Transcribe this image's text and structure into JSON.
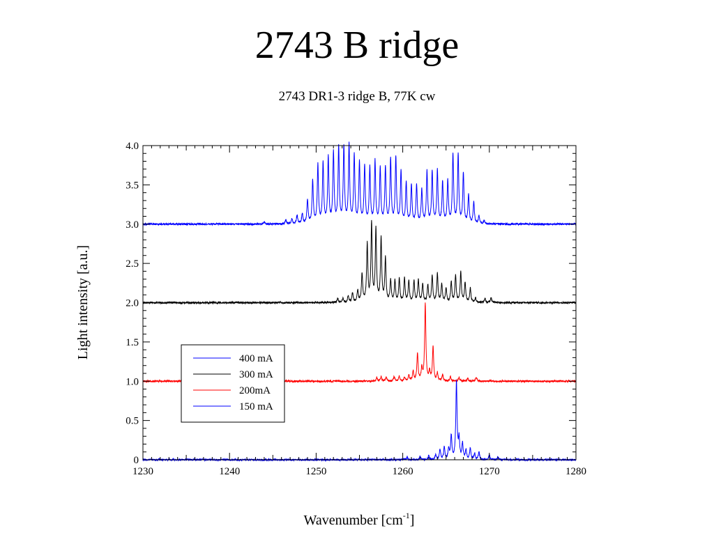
{
  "title": "2743 B ridge",
  "subtitle": "2743 DR1-3 ridge B, 77K cw",
  "chart_data": {
    "type": "line",
    "xlabel": "Wavenumber [cm",
    "xlabel_sup": "-1",
    "xlabel_tail": "]",
    "ylabel": "Light intensity [a.u.]",
    "xlim": [
      1230,
      1280
    ],
    "ylim": [
      0,
      4.0
    ],
    "xticks": [
      1230,
      1240,
      1250,
      1260,
      1270,
      1280
    ],
    "xtick_labels": [
      "1230",
      "1240",
      "1250",
      "1260",
      "1270",
      "1280"
    ],
    "yticks": [
      0,
      0.5,
      1.0,
      1.5,
      2.0,
      2.5,
      3.0,
      3.5,
      4.0
    ],
    "ytick_labels": [
      "0",
      "0.5",
      "1.0",
      "1.5",
      "2.0",
      "2.5",
      "3.0",
      "3.5",
      "4.0"
    ],
    "grid": false,
    "legend_position": "lower-left",
    "series": [
      {
        "name": "400 mA",
        "color": "#0000ff",
        "baseline": 3.0,
        "peaks": [
          [
            1244.0,
            0.03
          ],
          [
            1246.5,
            0.05
          ],
          [
            1247.2,
            0.07
          ],
          [
            1247.8,
            0.11
          ],
          [
            1248.4,
            0.13
          ],
          [
            1249.0,
            0.3
          ],
          [
            1249.6,
            0.55
          ],
          [
            1250.2,
            0.74
          ],
          [
            1250.8,
            0.77
          ],
          [
            1251.4,
            0.84
          ],
          [
            1252.0,
            0.9
          ],
          [
            1252.6,
            0.96
          ],
          [
            1253.2,
            0.97
          ],
          [
            1253.8,
            0.99
          ],
          [
            1254.4,
            0.86
          ],
          [
            1255.0,
            0.77
          ],
          [
            1255.6,
            0.73
          ],
          [
            1256.2,
            0.7
          ],
          [
            1256.8,
            0.79
          ],
          [
            1257.4,
            0.7
          ],
          [
            1258.0,
            0.71
          ],
          [
            1258.6,
            0.82
          ],
          [
            1259.2,
            0.84
          ],
          [
            1259.8,
            0.66
          ],
          [
            1260.4,
            0.52
          ],
          [
            1261.0,
            0.48
          ],
          [
            1261.6,
            0.49
          ],
          [
            1262.2,
            0.43
          ],
          [
            1262.8,
            0.66
          ],
          [
            1263.4,
            0.66
          ],
          [
            1264.0,
            0.67
          ],
          [
            1264.6,
            0.53
          ],
          [
            1265.2,
            0.54
          ],
          [
            1265.8,
            0.88
          ],
          [
            1266.4,
            0.87
          ],
          [
            1267.0,
            0.64
          ],
          [
            1267.6,
            0.36
          ],
          [
            1268.2,
            0.27
          ],
          [
            1268.8,
            0.1
          ],
          [
            1269.4,
            0.04
          ]
        ]
      },
      {
        "name": "300 mA",
        "color": "#000000",
        "baseline": 2.0,
        "peaks": [
          [
            1252.5,
            0.05
          ],
          [
            1253.1,
            0.05
          ],
          [
            1253.7,
            0.08
          ],
          [
            1254.2,
            0.12
          ],
          [
            1254.8,
            0.15
          ],
          [
            1255.3,
            0.36
          ],
          [
            1255.9,
            0.73
          ],
          [
            1256.4,
            0.99
          ],
          [
            1256.9,
            0.92
          ],
          [
            1257.5,
            0.8
          ],
          [
            1258.0,
            0.56
          ],
          [
            1258.6,
            0.28
          ],
          [
            1259.1,
            0.27
          ],
          [
            1259.6,
            0.3
          ],
          [
            1260.2,
            0.3
          ],
          [
            1260.7,
            0.27
          ],
          [
            1261.3,
            0.27
          ],
          [
            1261.8,
            0.28
          ],
          [
            1262.3,
            0.23
          ],
          [
            1262.9,
            0.22
          ],
          [
            1263.4,
            0.34
          ],
          [
            1264.0,
            0.36
          ],
          [
            1264.5,
            0.23
          ],
          [
            1265.0,
            0.18
          ],
          [
            1265.6,
            0.26
          ],
          [
            1266.1,
            0.34
          ],
          [
            1266.7,
            0.38
          ],
          [
            1267.2,
            0.25
          ],
          [
            1267.8,
            0.18
          ],
          [
            1268.4,
            0.06
          ],
          [
            1269.5,
            0.05
          ],
          [
            1270.2,
            0.06
          ]
        ]
      },
      {
        "name": "200mA",
        "color": "#ff0000",
        "baseline": 1.0,
        "peaks": [
          [
            1257.0,
            0.05
          ],
          [
            1257.5,
            0.06
          ],
          [
            1258.1,
            0.05
          ],
          [
            1259.0,
            0.06
          ],
          [
            1259.6,
            0.06
          ],
          [
            1260.2,
            0.05
          ],
          [
            1260.7,
            0.07
          ],
          [
            1261.2,
            0.12
          ],
          [
            1261.7,
            0.35
          ],
          [
            1262.2,
            0.15
          ],
          [
            1262.6,
            0.98
          ],
          [
            1263.1,
            0.12
          ],
          [
            1263.5,
            0.44
          ],
          [
            1264.0,
            0.1
          ],
          [
            1264.6,
            0.08
          ],
          [
            1265.5,
            0.06
          ],
          [
            1266.5,
            0.05
          ],
          [
            1267.5,
            0.04
          ],
          [
            1268.5,
            0.05
          ]
        ]
      },
      {
        "name": "150 mA",
        "color": "#0000ff",
        "baseline": 0.0,
        "peaks": [
          [
            1260.5,
            0.03
          ],
          [
            1262.0,
            0.04
          ],
          [
            1263.0,
            0.05
          ],
          [
            1263.8,
            0.06
          ],
          [
            1264.3,
            0.13
          ],
          [
            1264.8,
            0.16
          ],
          [
            1265.3,
            0.13
          ],
          [
            1265.6,
            0.3
          ],
          [
            1266.2,
            0.99
          ],
          [
            1266.5,
            0.25
          ],
          [
            1266.9,
            0.2
          ],
          [
            1267.3,
            0.12
          ],
          [
            1267.8,
            0.15
          ],
          [
            1268.3,
            0.08
          ],
          [
            1268.8,
            0.1
          ],
          [
            1270.0,
            0.06
          ],
          [
            1271.0,
            0.04
          ]
        ]
      }
    ]
  }
}
